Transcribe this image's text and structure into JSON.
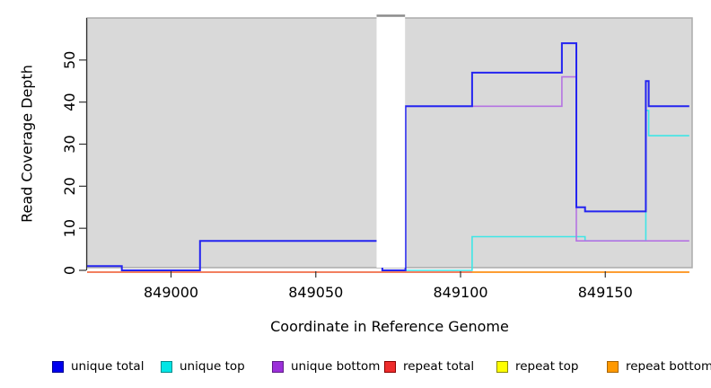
{
  "chart_data": {
    "type": "line",
    "title": "",
    "xlabel": "Coordinate in Reference Genome",
    "ylabel": "Read Coverage Depth",
    "xlim": [
      848971,
      849180
    ],
    "ylim": [
      0,
      60
    ],
    "x_ticks": [
      849000,
      849050,
      849100,
      849150
    ],
    "y_ticks": [
      0,
      10,
      20,
      30,
      40,
      50
    ],
    "grid": false,
    "plot_bg": "#d9d9d9",
    "axis_color": "#333333",
    "border_color": "#ababab",
    "missing_region": {
      "x0": 849071,
      "x1": 849081,
      "fill": "#ffffff",
      "top_border": "#8c8c8c"
    },
    "series": [
      {
        "name": "repeat top",
        "color": "#ffff00",
        "points": [
          [
            848971,
            0
          ],
          [
            849179,
            0
          ]
        ]
      },
      {
        "name": "repeat total",
        "color": "#ee5555",
        "points": [
          [
            848971,
            0
          ],
          [
            849179,
            0
          ]
        ]
      },
      {
        "name": "repeat bottom",
        "color": "#ff9b21",
        "points": [
          [
            849104,
            0
          ],
          [
            849179,
            0
          ]
        ]
      },
      {
        "name": "unique top",
        "color": "#3fe6e6",
        "points": [
          [
            849081,
            0
          ],
          [
            849104,
            0
          ],
          [
            849104,
            8
          ],
          [
            849143,
            8
          ],
          [
            849143,
            7
          ],
          [
            849164,
            7
          ],
          [
            849164,
            38
          ],
          [
            849165,
            38
          ],
          [
            849165,
            32
          ],
          [
            849179,
            32
          ]
        ]
      },
      {
        "name": "unique bottom",
        "color": "#b573e2",
        "points": [
          [
            849081,
            0
          ],
          [
            849081,
            39
          ],
          [
            849135,
            39
          ],
          [
            849135,
            46
          ],
          [
            849140,
            46
          ],
          [
            849140,
            7
          ],
          [
            849179,
            7
          ]
        ]
      },
      {
        "name": "unique total",
        "color": "#2424f0",
        "points": [
          [
            848971,
            1
          ],
          [
            848983,
            1
          ],
          [
            848983,
            0
          ],
          [
            849010,
            0
          ],
          [
            849010,
            7
          ],
          [
            849073,
            7
          ],
          [
            849073,
            0
          ],
          [
            849081,
            0
          ],
          [
            849081,
            39
          ],
          [
            849104,
            39
          ],
          [
            849104,
            47
          ],
          [
            849135,
            47
          ],
          [
            849135,
            54
          ],
          [
            849140,
            54
          ],
          [
            849140,
            15
          ],
          [
            849143,
            15
          ],
          [
            849143,
            14
          ],
          [
            849164,
            14
          ],
          [
            849164,
            45
          ],
          [
            849165,
            45
          ],
          [
            849165,
            39
          ],
          [
            849179,
            39
          ]
        ]
      }
    ],
    "legend": [
      {
        "label": "unique total",
        "fill": "#0000ee",
        "border": "#000090"
      },
      {
        "label": "unique top",
        "fill": "#00e5e5",
        "border": "#008b8b"
      },
      {
        "label": "unique bottom",
        "fill": "#9b30d9",
        "border": "#5e1c86"
      },
      {
        "label": "repeat total",
        "fill": "#ee2c2c",
        "border": "#8b0000"
      },
      {
        "label": "repeat top",
        "fill": "#ffff00",
        "border": "#8b8b00"
      },
      {
        "label": "repeat bottom",
        "fill": "#ff9900",
        "border": "#a66300"
      }
    ],
    "legend_position": "bottom"
  }
}
